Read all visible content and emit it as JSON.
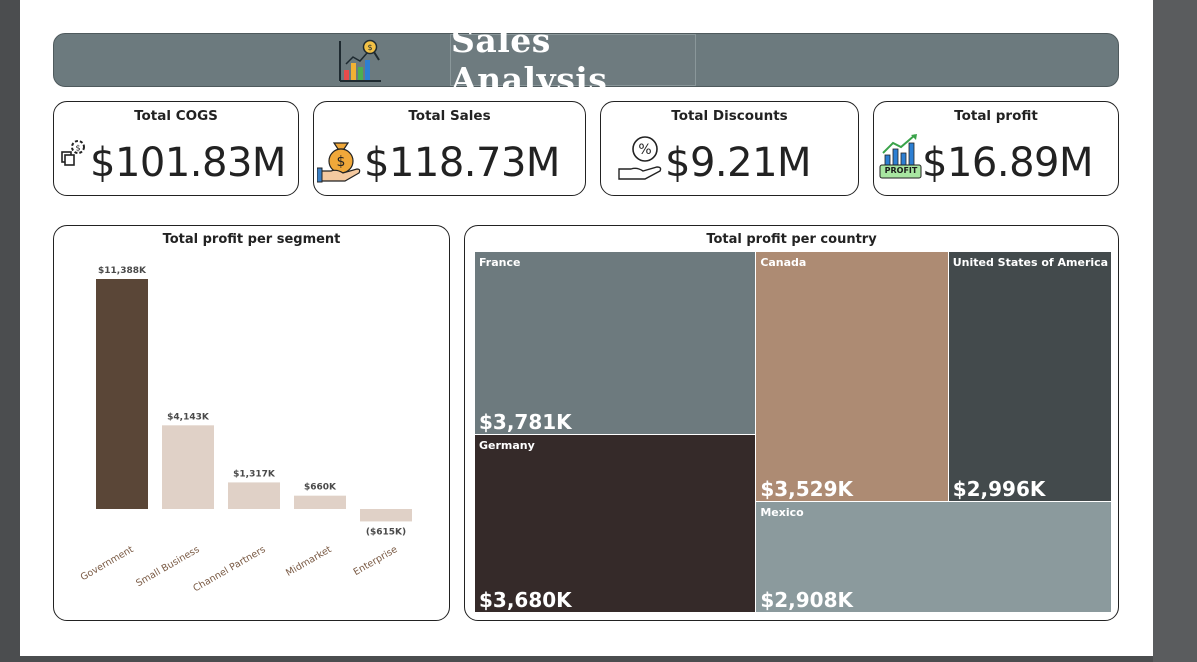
{
  "banner": {
    "title": "Sales Analysis"
  },
  "kpis": [
    {
      "title": "Total COGS",
      "value": "$101.83M",
      "icon": "gear-dollar-icon"
    },
    {
      "title": "Total Sales",
      "value": "$118.73M",
      "icon": "money-bag-hand-icon"
    },
    {
      "title": "Total Discounts",
      "value": "$9.21M",
      "icon": "percent-hand-icon"
    },
    {
      "title": "Total profit",
      "value": "$16.89M",
      "icon": "profit-chart-icon",
      "badge": "PROFIT"
    }
  ],
  "colors": {
    "banner": "#6c7a7e",
    "government": "#5a4637",
    "other_segments": "#e0d1c7"
  },
  "chart_data": [
    {
      "type": "bar",
      "title": "Total profit per segment",
      "categories": [
        "Government",
        "Small Business",
        "Channel Partners",
        "Midmarket",
        "Enterprise"
      ],
      "values": [
        11388,
        4143,
        1317,
        660,
        -615
      ],
      "labels": [
        "$11,388K",
        "$4,143K",
        "$1,317K",
        "$660K",
        "($615K)"
      ],
      "units": "$K",
      "xlabel": "",
      "ylabel": ""
    },
    {
      "type": "treemap",
      "title": "Total profit per country",
      "items": [
        {
          "name": "France",
          "value": 3781,
          "label": "$3,781K",
          "color": "#6d7a7e"
        },
        {
          "name": "Germany",
          "value": 3680,
          "label": "$3,680K",
          "color": "#352a29"
        },
        {
          "name": "Canada",
          "value": 3529,
          "label": "$3,529K",
          "color": "#ad8b73"
        },
        {
          "name": "United States of America",
          "value": 2996,
          "label": "$2,996K",
          "color": "#434a4c"
        },
        {
          "name": "Mexico",
          "value": 2908,
          "label": "$2,908K",
          "color": "#8b9a9d"
        }
      ]
    }
  ]
}
